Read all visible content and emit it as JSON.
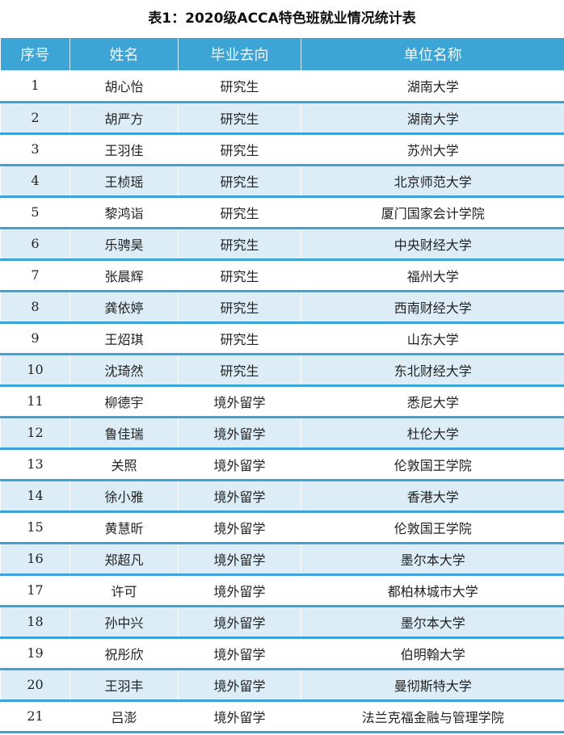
{
  "title": "表1：2020级ACCA特色班就业情况统计表",
  "headers": [
    "序号",
    "姓名",
    "毕业去向",
    "单位名称"
  ],
  "rows": [
    [
      "1",
      "胡心怡",
      "研究生",
      "湖南大学"
    ],
    [
      "2",
      "胡严方",
      "研究生",
      "湖南大学"
    ],
    [
      "3",
      "王羽佳",
      "研究生",
      "苏州大学"
    ],
    [
      "4",
      "王桢瑶",
      "研究生",
      "北京师范大学"
    ],
    [
      "5",
      "黎鸿诣",
      "研究生",
      "厦门国家会计学院"
    ],
    [
      "6",
      "乐骋昊",
      "研究生",
      "中央财经大学"
    ],
    [
      "7",
      "张晨辉",
      "研究生",
      "福州大学"
    ],
    [
      "8",
      "龚依婷",
      "研究生",
      "西南财经大学"
    ],
    [
      "9",
      "王炤琪",
      "研究生",
      "山东大学"
    ],
    [
      "10",
      "沈琦然",
      "研究生",
      "东北财经大学"
    ],
    [
      "11",
      "柳德宇",
      "境外留学",
      "悉尼大学"
    ],
    [
      "12",
      "鲁佳瑞",
      "境外留学",
      "杜伦大学"
    ],
    [
      "13",
      "关照",
      "境外留学",
      "伦敦国王学院"
    ],
    [
      "14",
      "徐小雅",
      "境外留学",
      "香港大学"
    ],
    [
      "15",
      "黄慧昕",
      "境外留学",
      "伦敦国王学院"
    ],
    [
      "16",
      "郑超凡",
      "境外留学",
      "墨尔本大学"
    ],
    [
      "17",
      "许可",
      "境外留学",
      "都柏林城市大学"
    ],
    [
      "18",
      "孙中兴",
      "境外留学",
      "墨尔本大学"
    ],
    [
      "19",
      "祝彤欣",
      "境外留学",
      "伯明翰大学"
    ],
    [
      "20",
      "王羽丰",
      "境外留学",
      "曼彻斯特大学"
    ],
    [
      "21",
      "吕澎",
      "境外留学",
      "法兰克福金融与管理学院"
    ]
  ],
  "colors": {
    "header": "#3ca5d6",
    "alt_row": "#ddedf7"
  }
}
